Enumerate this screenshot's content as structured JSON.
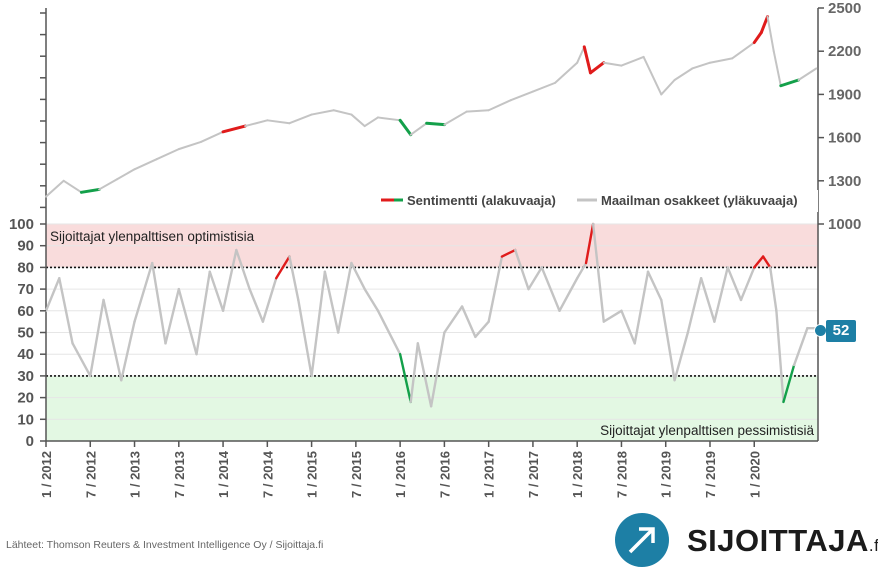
{
  "chart_data": {
    "type": "line",
    "upper": {
      "series_name": "Maailman osakkeet (yläkuvaaja)",
      "yticks": [
        1000,
        1300,
        1600,
        1900,
        2200,
        2500
      ],
      "ylim": [
        1000,
        2500
      ],
      "x": [
        2012.0,
        2012.2,
        2012.4,
        2012.6,
        2012.8,
        2013.0,
        2013.25,
        2013.5,
        2013.75,
        2014.0,
        2014.25,
        2014.5,
        2014.75,
        2015.0,
        2015.25,
        2015.45,
        2015.6,
        2015.75,
        2016.0,
        2016.12,
        2016.3,
        2016.5,
        2016.75,
        2017.0,
        2017.25,
        2017.5,
        2017.75,
        2018.0,
        2018.08,
        2018.15,
        2018.3,
        2018.5,
        2018.75,
        2018.95,
        2019.1,
        2019.3,
        2019.5,
        2019.75,
        2020.0,
        2020.08,
        2020.15,
        2020.22,
        2020.3,
        2020.5,
        2020.7
      ],
      "y": [
        1190,
        1300,
        1220,
        1240,
        1310,
        1380,
        1450,
        1520,
        1570,
        1640,
        1680,
        1720,
        1700,
        1760,
        1790,
        1760,
        1680,
        1740,
        1720,
        1620,
        1700,
        1690,
        1780,
        1790,
        1860,
        1920,
        1980,
        2120,
        2230,
        2050,
        2120,
        2100,
        2160,
        1900,
        2000,
        2080,
        2120,
        2150,
        2260,
        2330,
        2440,
        2200,
        1960,
        2000,
        2080
      ]
    },
    "lower": {
      "series_name": "Sentimentti (alakuvaaja)",
      "yticks": [
        0,
        10,
        20,
        30,
        40,
        50,
        60,
        70,
        80,
        90,
        100
      ],
      "ylim": [
        0,
        100
      ],
      "thresholds": [
        30,
        80
      ],
      "zone_optimistic": "Sijoittajat ylenpalttisen optimistisia",
      "zone_pessimistic": "Sijoittajat ylenpalttisen pessimistisiä",
      "latest_value": "52",
      "x": [
        2012.0,
        2012.15,
        2012.3,
        2012.5,
        2012.65,
        2012.85,
        2013.0,
        2013.2,
        2013.35,
        2013.5,
        2013.7,
        2013.85,
        2014.0,
        2014.15,
        2014.3,
        2014.45,
        2014.6,
        2014.75,
        2014.85,
        2015.0,
        2015.15,
        2015.3,
        2015.45,
        2015.6,
        2015.75,
        2016.0,
        2016.12,
        2016.2,
        2016.35,
        2016.5,
        2016.7,
        2016.85,
        2017.0,
        2017.15,
        2017.3,
        2017.45,
        2017.6,
        2017.8,
        2018.0,
        2018.1,
        2018.18,
        2018.3,
        2018.5,
        2018.65,
        2018.8,
        2018.95,
        2019.1,
        2019.25,
        2019.4,
        2019.55,
        2019.7,
        2019.85,
        2020.0,
        2020.1,
        2020.18,
        2020.25,
        2020.33,
        2020.45,
        2020.6,
        2020.72
      ],
      "y": [
        60,
        75,
        45,
        30,
        65,
        28,
        55,
        82,
        45,
        70,
        40,
        78,
        60,
        88,
        70,
        55,
        75,
        85,
        65,
        30,
        78,
        50,
        82,
        70,
        60,
        40,
        18,
        45,
        16,
        50,
        62,
        48,
        55,
        85,
        88,
        70,
        80,
        60,
        75,
        82,
        100,
        55,
        60,
        45,
        78,
        65,
        28,
        50,
        75,
        55,
        80,
        65,
        80,
        85,
        80,
        60,
        18,
        35,
        52,
        52
      ]
    },
    "x_ticks": [
      "1 / 2012",
      "7 / 2012",
      "1 / 2013",
      "7 / 2013",
      "1 / 2014",
      "7 / 2014",
      "1 / 2015",
      "7 / 2015",
      "1 / 2016",
      "7 / 2016",
      "1 / 2017",
      "7 / 2017",
      "1 / 2018",
      "7 / 2018",
      "1 / 2019",
      "7 / 2019",
      "1 / 2020"
    ],
    "legend": [
      "Sentimentti (alakuvaaja)",
      "Maailman osakkeet (yläkuvaaja)"
    ]
  },
  "source_text": "Lähteet: Thomson Reuters & Investment Intelligence Oy / Sijoittaja.fi",
  "logo": {
    "word": "SIJOITTAJA",
    "tld": ".fi"
  },
  "colors": {
    "optimistic_band": "#f9dcdc",
    "pessimistic_band": "#e3f8e3",
    "hot": "#e01b1b",
    "cold": "#13a04a",
    "neutral": "#c4c4c4",
    "brand": "#1d7fa5"
  }
}
